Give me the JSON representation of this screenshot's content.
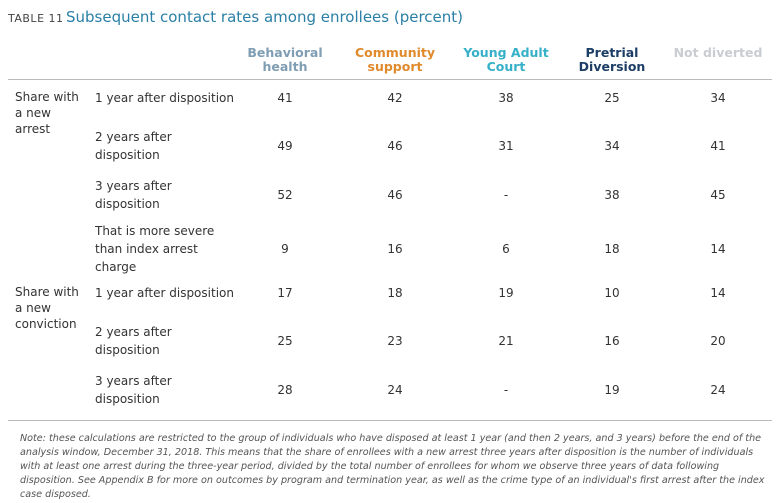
{
  "header": {
    "label": "TABLE 11",
    "title": "Subsequent contact rates among enrollees (percent)"
  },
  "table": {
    "columns": [
      {
        "name": "Behavioral health",
        "color": "#7f9db3"
      },
      {
        "name": "Community support",
        "color": "#e08a2c"
      },
      {
        "name": "Young Adult Court",
        "color": "#35b0c8"
      },
      {
        "name": "Pretrial Diversion",
        "color": "#1c3d66"
      },
      {
        "name": "Not diverted",
        "color": "#c9cdd1"
      }
    ],
    "groups": [
      {
        "label": "Share with a new arrest",
        "rows": [
          {
            "label": "1 year after disposition",
            "values": [
              41,
              42,
              38,
              25,
              34
            ]
          },
          {
            "label": "2 years after disposition",
            "values": [
              49,
              46,
              31,
              34,
              41
            ]
          },
          {
            "label": "3 years after disposition",
            "values": [
              52,
              46,
              "-",
              38,
              45
            ]
          },
          {
            "label": "That is more severe than index arrest charge",
            "values": [
              9,
              16,
              6,
              18,
              14
            ]
          }
        ]
      },
      {
        "label": "Share with a new conviction",
        "rows": [
          {
            "label": "1 year after disposition",
            "values": [
              17,
              18,
              19,
              10,
              14
            ]
          },
          {
            "label": "2 years after disposition",
            "values": [
              25,
              23,
              21,
              16,
              20
            ]
          },
          {
            "label": "3 years after disposition",
            "values": [
              28,
              24,
              "-",
              19,
              24
            ]
          }
        ]
      }
    ]
  },
  "note": "Note: these calculations are restricted to the group of individuals who have disposed at least 1 year (and then 2 years, and 3 years) before the end of the analysis window, December 31, 2018. This means that the share of enrollees with a new arrest three years after disposition is the number of individuals with at least one arrest during the three-year period, divided by the total number of enrollees for whom we observe three years of data following disposition. See Appendix B for more on outcomes by program and termination year, as well as the crime type of an individual's first arrest after the index case disposed."
}
